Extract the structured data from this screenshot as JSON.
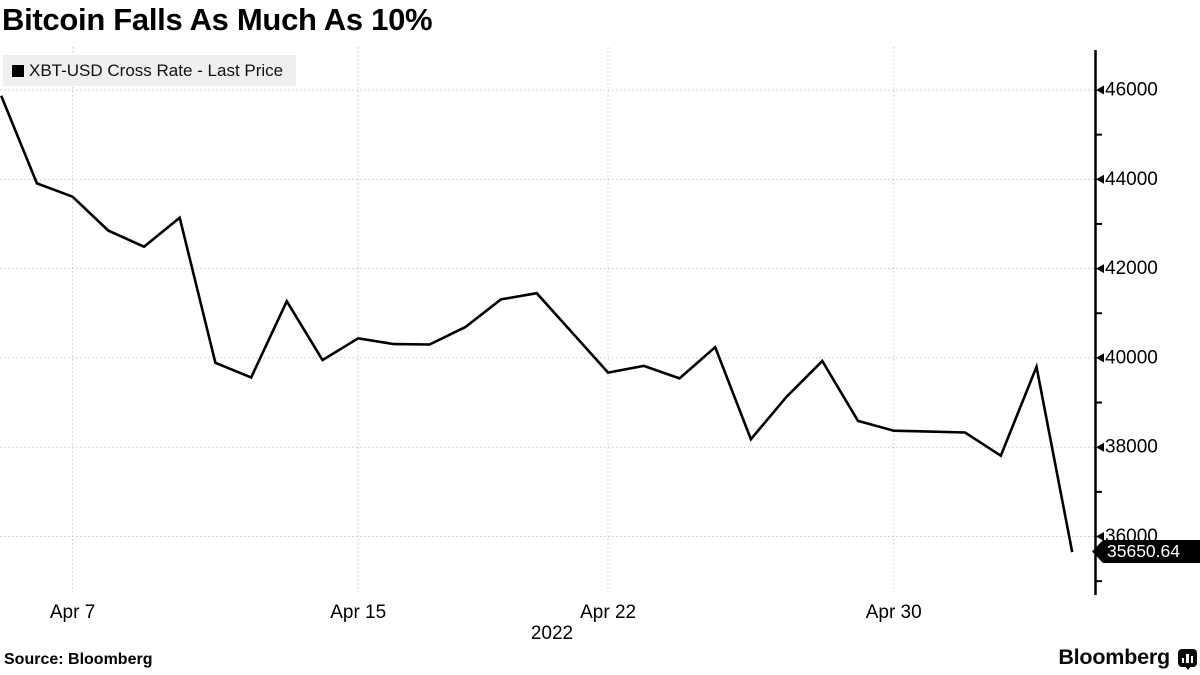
{
  "chart": {
    "title": "Bitcoin Falls As Much As 10%",
    "legend_label": "XBT-USD Cross Rate - Last Price",
    "axis_year": "2022",
    "last_price_label": "35650.64"
  },
  "footer": {
    "source": "Source: Bloomberg",
    "brand": "Bloomberg"
  },
  "colors": {
    "line": "#000000",
    "grid": "#c9c9c9",
    "axis": "#000000",
    "legend_bg": "#efefef",
    "badge_bg": "#000000",
    "badge_text": "#ffffff",
    "background": "#ffffff"
  },
  "chart_data": {
    "type": "line",
    "title": "Bitcoin Falls As Much As 10%",
    "series_name": "XBT-USD Cross Rate - Last Price",
    "x": [
      "Apr 5",
      "Apr 6",
      "Apr 7",
      "Apr 8",
      "Apr 9",
      "Apr 10",
      "Apr 11",
      "Apr 12",
      "Apr 13",
      "Apr 14",
      "Apr 15",
      "Apr 16",
      "Apr 17",
      "Apr 18",
      "Apr 19",
      "Apr 20",
      "Apr 21",
      "Apr 22",
      "Apr 23",
      "Apr 24",
      "Apr 25",
      "Apr 26",
      "Apr 27",
      "Apr 28",
      "Apr 29",
      "Apr 30",
      "May 1",
      "May 2",
      "May 3",
      "May 4",
      "May 5"
    ],
    "values": [
      45870,
      43910,
      43610,
      42850,
      42490,
      43140,
      39890,
      39560,
      41270,
      39950,
      40440,
      40310,
      40300,
      40690,
      41310,
      41450,
      40560,
      39670,
      39820,
      39540,
      40240,
      38180,
      39130,
      39930,
      38590,
      38370,
      38350,
      38330,
      37810,
      39800,
      35650.64
    ],
    "last_price": 35650.64,
    "y_ticks_labeled": [
      46000,
      44000,
      42000,
      40000,
      38000,
      36000
    ],
    "y_ticks_minor": [
      45000,
      43000,
      41000,
      39000,
      37000,
      35000
    ],
    "x_ticks": [
      {
        "label": "Apr 7",
        "index": 2
      },
      {
        "label": "Apr 15",
        "index": 10
      },
      {
        "label": "Apr 22",
        "index": 17
      },
      {
        "label": "Apr 30",
        "index": 25
      }
    ],
    "year_label": "2022",
    "ylim": [
      34900,
      46900
    ],
    "grid": true,
    "legend_position": "top-left",
    "y_axis_side": "right"
  }
}
